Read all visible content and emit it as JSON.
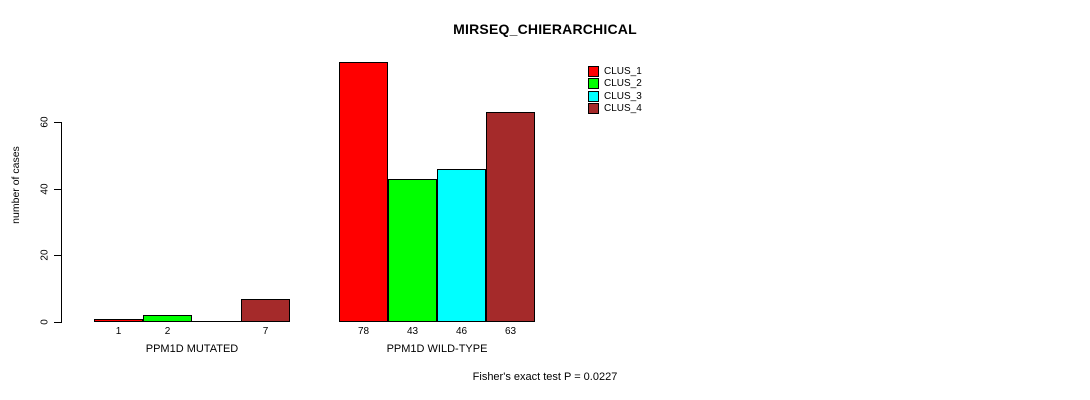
{
  "chart_data": {
    "type": "bar",
    "title": "MIRSEQ_CHIERARCHICAL",
    "ylabel": "number of cases",
    "xlabel": "",
    "ylim": [
      0,
      60
    ],
    "yticks": [
      0,
      20,
      40,
      60
    ],
    "grid": false,
    "categories": [
      "PPM1D MUTATED",
      "PPM1D WILD-TYPE"
    ],
    "series": [
      {
        "name": "CLUS_1",
        "color": "#ff0000",
        "values": [
          1,
          78
        ]
      },
      {
        "name": "CLUS_2",
        "color": "#00ff00",
        "values": [
          2,
          43
        ]
      },
      {
        "name": "CLUS_3",
        "color": "#00ffff",
        "values": [
          0,
          46
        ]
      },
      {
        "name": "CLUS_4",
        "color": "#a52a2a",
        "values": [
          7,
          63
        ]
      }
    ],
    "bar_value_labels": [
      [
        "1",
        "2",
        "",
        "7"
      ],
      [
        "78",
        "43",
        "46",
        "63"
      ]
    ],
    "legend": {
      "position": "top-right",
      "entries": [
        "CLUS_1",
        "CLUS_2",
        "CLUS_3",
        "CLUS_4"
      ]
    },
    "annotation": "Fisher's exact test P = 0.0227"
  }
}
